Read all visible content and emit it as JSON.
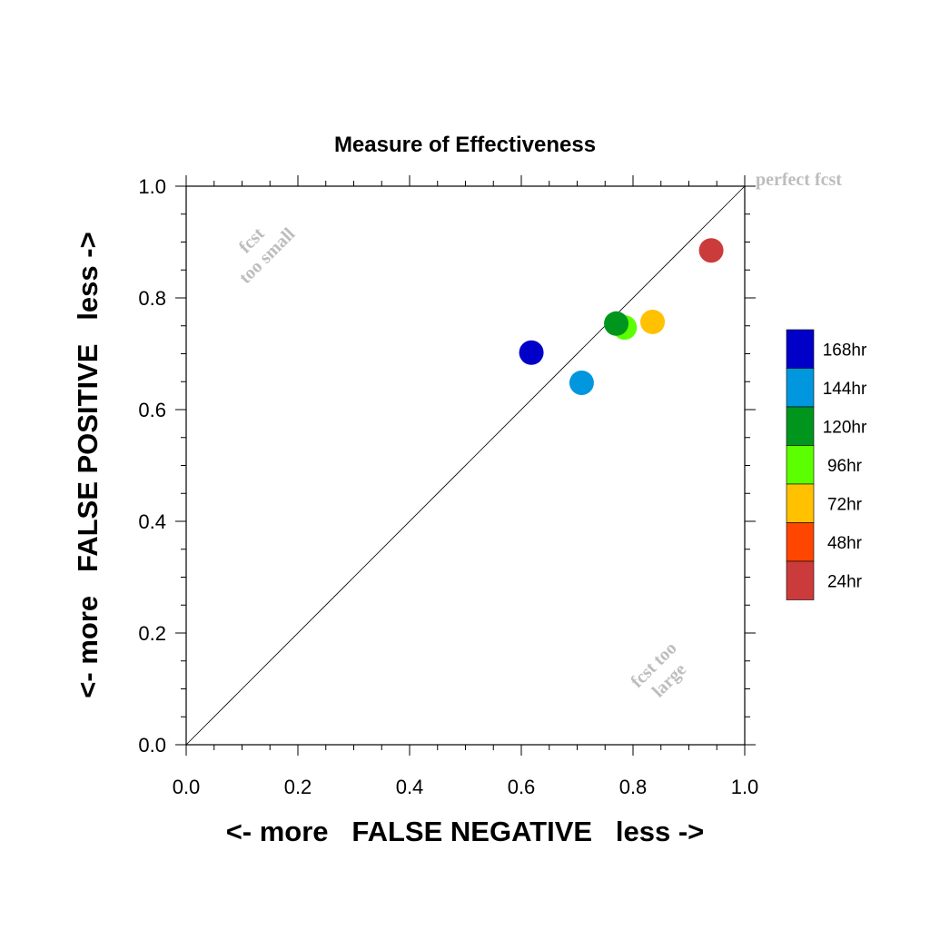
{
  "chart_data": {
    "type": "scatter",
    "title": "Measure of Effectiveness",
    "xlabel": "<- more   FALSE NEGATIVE   less ->",
    "ylabel": "<- more   FALSE POSITIVE   less ->",
    "xlim": [
      0.0,
      1.0
    ],
    "ylim": [
      0.0,
      1.0
    ],
    "x_ticks": [
      "0.0",
      "0.2",
      "0.4",
      "0.6",
      "0.8",
      "1.0"
    ],
    "y_ticks": [
      "0.0",
      "0.2",
      "0.4",
      "0.6",
      "0.8",
      "1.0"
    ],
    "grid": false,
    "reference_line": {
      "from": [
        0.0,
        0.0
      ],
      "to": [
        1.0,
        1.0
      ],
      "label": "perfect fcst"
    },
    "annotations": [
      {
        "lines": [
          "fcst",
          "too small"
        ],
        "x": 0.13,
        "y": 0.89
      },
      {
        "lines": [
          "fcst too",
          "large"
        ],
        "x": 0.85,
        "y": 0.13
      }
    ],
    "points": [
      {
        "name": "24hr",
        "x": 0.94,
        "y": 0.885,
        "color": "#cc3b3b"
      },
      {
        "name": "72hr",
        "x": 0.835,
        "y": 0.757,
        "color": "#ffc100"
      },
      {
        "name": "96hr",
        "x": 0.785,
        "y": 0.747,
        "color": "#5cff00"
      },
      {
        "name": "120hr",
        "x": 0.77,
        "y": 0.754,
        "color": "#00961e"
      },
      {
        "name": "144hr",
        "x": 0.708,
        "y": 0.648,
        "color": "#0097df"
      },
      {
        "name": "168hr",
        "x": 0.618,
        "y": 0.702,
        "color": "#0000c8"
      }
    ],
    "legend": {
      "placement": "right",
      "entries": [
        {
          "label": "168hr",
          "color": "#0000c8"
        },
        {
          "label": "144hr",
          "color": "#0097df"
        },
        {
          "label": "120hr",
          "color": "#00961e"
        },
        {
          "label": "96hr",
          "color": "#5cff00"
        },
        {
          "label": "72hr",
          "color": "#ffc100"
        },
        {
          "label": "48hr",
          "color": "#ff4600"
        },
        {
          "label": "24hr",
          "color": "#cc3b3b"
        }
      ]
    }
  }
}
